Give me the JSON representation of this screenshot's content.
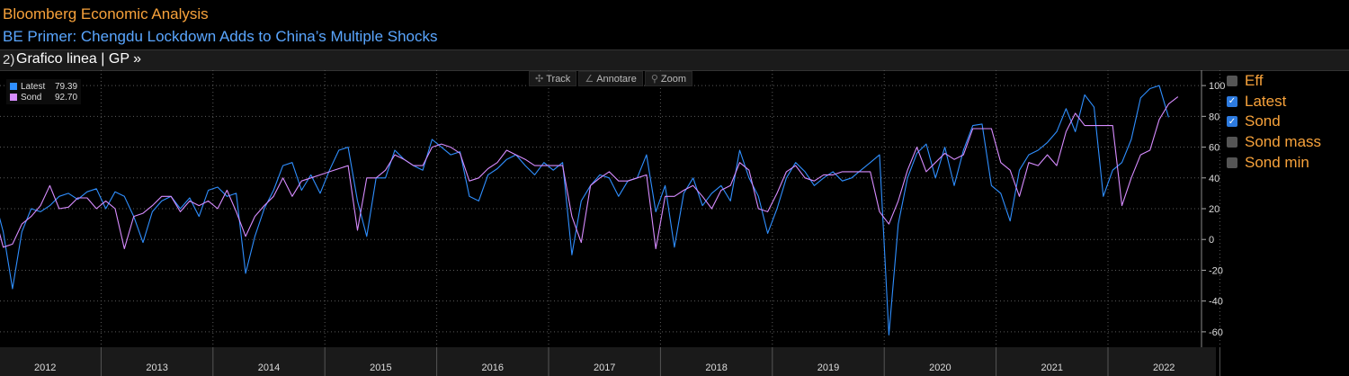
{
  "header": {
    "source": "Bloomberg Economic Analysis",
    "headline": "BE Primer: Chengdu Lockdown Adds to China’s Multiple Shocks",
    "toolbar_title": "Grafico linea | GP »"
  },
  "tools": [
    {
      "icon": "crosshair-icon",
      "glyph": "✣",
      "label": "Track"
    },
    {
      "icon": "pencil-icon",
      "glyph": "∠",
      "label": "Annotare"
    },
    {
      "icon": "magnifier-icon",
      "glyph": "⚲",
      "label": "Zoom"
    }
  ],
  "legend": [
    {
      "name": "Latest",
      "value": "79.39",
      "color": "#2f8fff"
    },
    {
      "name": "Sond",
      "value": "92.70",
      "color": "#d78cff"
    }
  ],
  "series_toggles": [
    {
      "label": "Eff",
      "checked": false
    },
    {
      "label": "Latest",
      "checked": true
    },
    {
      "label": "Sond",
      "checked": true
    },
    {
      "label": "Sond mass",
      "checked": false
    },
    {
      "label": "Sond min",
      "checked": false
    }
  ],
  "chart_data": {
    "type": "line",
    "x_start": "2012-01",
    "x_end": "2022-09",
    "x_ticks": [
      "2012",
      "2013",
      "2014",
      "2015",
      "2016",
      "2017",
      "2018",
      "2019",
      "2020",
      "2021",
      "2022"
    ],
    "ylim": [
      -70,
      110
    ],
    "y_ticks": [
      -60,
      -40,
      -20,
      0,
      20,
      40,
      60,
      80,
      100
    ],
    "grid": true,
    "series": [
      {
        "name": "Latest",
        "color": "#2f8fff",
        "values": [
          28,
          5,
          -32,
          5,
          20,
          18,
          22,
          28,
          30,
          26,
          31,
          33,
          20,
          31,
          28,
          15,
          -2,
          18,
          25,
          28,
          20,
          27,
          15,
          32,
          34,
          28,
          30,
          -22,
          2,
          20,
          32,
          48,
          50,
          32,
          42,
          30,
          45,
          58,
          60,
          25,
          2,
          40,
          40,
          58,
          52,
          48,
          45,
          65,
          60,
          55,
          57,
          28,
          25,
          42,
          46,
          52,
          55,
          48,
          42,
          50,
          45,
          50,
          -10,
          25,
          35,
          42,
          40,
          28,
          38,
          40,
          55,
          18,
          35,
          -5,
          30,
          40,
          22,
          30,
          35,
          25,
          58,
          40,
          28,
          4,
          20,
          40,
          50,
          44,
          35,
          40,
          44,
          38,
          40,
          45,
          50,
          55,
          -62,
          10,
          40,
          56,
          62,
          40,
          60,
          35,
          58,
          74,
          75,
          35,
          30,
          12,
          45,
          55,
          58,
          63,
          70,
          85,
          70,
          94,
          86,
          28,
          45,
          50,
          65,
          92,
          98,
          100,
          79.39
        ]
      },
      {
        "name": "Sond",
        "color": "#d78cff",
        "values": [
          18,
          -5,
          -3,
          10,
          15,
          22,
          35,
          20,
          21,
          27,
          27,
          20,
          25,
          20,
          -6,
          15,
          17,
          22,
          28,
          28,
          18,
          25,
          22,
          25,
          20,
          32,
          18,
          2,
          15,
          22,
          28,
          40,
          28,
          38,
          40,
          42,
          44,
          46,
          48,
          6,
          40,
          40,
          45,
          55,
          52,
          48,
          48,
          60,
          62,
          60,
          56,
          38,
          40,
          46,
          50,
          58,
          55,
          52,
          48,
          48,
          48,
          48,
          15,
          -2,
          35,
          40,
          44,
          38,
          38,
          40,
          42,
          -6,
          28,
          28,
          32,
          35,
          28,
          20,
          32,
          35,
          50,
          45,
          20,
          18,
          30,
          44,
          48,
          40,
          38,
          42,
          42,
          44,
          44,
          44,
          44,
          18,
          10,
          25,
          45,
          60,
          44,
          50,
          56,
          52,
          55,
          72,
          72,
          72,
          50,
          45,
          28,
          50,
          48,
          55,
          48,
          70,
          82,
          74,
          74,
          74,
          74,
          22,
          40,
          55,
          58,
          78,
          88,
          92.7
        ]
      }
    ]
  }
}
